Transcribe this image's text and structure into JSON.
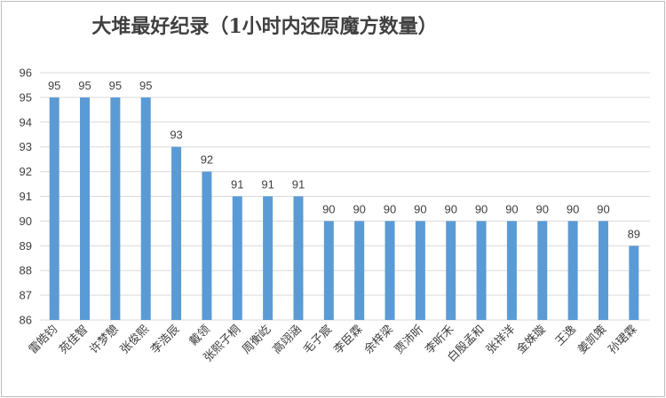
{
  "chart_data": {
    "type": "bar",
    "title": "大堆最好纪录（1小时内还原魔方数量）",
    "xlabel": "",
    "ylabel": "",
    "ylim": [
      86,
      96
    ],
    "yticks": [
      86,
      87,
      88,
      89,
      90,
      91,
      92,
      93,
      94,
      95,
      96
    ],
    "grid": true,
    "legend": "none",
    "bar_color": "#5b9bd5",
    "categories": [
      "雷皓钧",
      "苑佳智",
      "许梦憩",
      "张俊熙",
      "李浩辰",
      "戴领",
      "张熙子桐",
      "周衡屹",
      "高翊涵",
      "毛子宸",
      "李臣霖",
      "余梓梁",
      "贾沛昕",
      "李昕禾",
      "白殷孟和",
      "张祥洋",
      "金姝璇",
      "王逸",
      "姜凯策",
      "孙珺霖"
    ],
    "values": [
      95,
      95,
      95,
      95,
      93,
      92,
      91,
      91,
      91,
      90,
      90,
      90,
      90,
      90,
      90,
      90,
      90,
      90,
      90,
      89
    ]
  }
}
